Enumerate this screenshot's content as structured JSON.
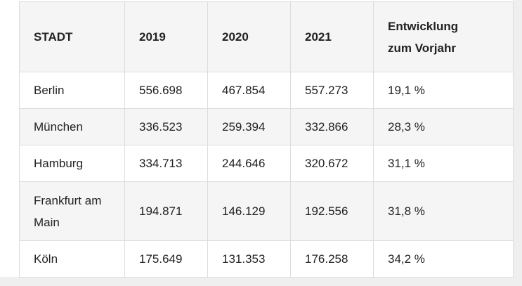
{
  "table": {
    "header": [
      "STADT",
      "2019",
      "2020",
      "2021",
      "Entwicklung zum Vorjahr"
    ],
    "rows": [
      [
        "Berlin",
        "556.698",
        "467.854",
        "557.273",
        "19,1 %"
      ],
      [
        "München",
        "336.523",
        "259.394",
        "332.866",
        "28,3 %"
      ],
      [
        "Hamburg",
        "334.713",
        "244.646",
        "320.672",
        "31,1 %"
      ],
      [
        "Frankfurt am Main",
        "194.871",
        "146.129",
        "192.556",
        "31,8 %"
      ],
      [
        "Köln",
        "175.649",
        "131.353",
        "176.258",
        "34,2 %"
      ]
    ]
  }
}
